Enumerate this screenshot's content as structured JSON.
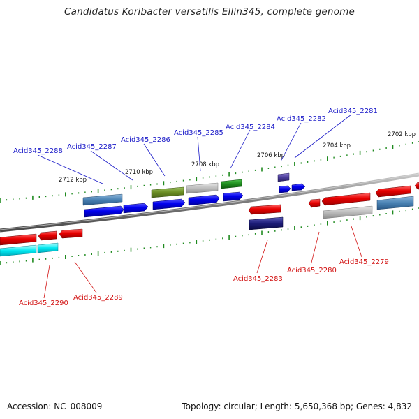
{
  "title": "Candidatus Koribacter versatilis Ellin345, complete genome",
  "footer": {
    "accession": "Accession: NC_008009",
    "topology": "Topology: circular; Length: 5,650,368 bp; Genes: 4,832"
  },
  "colors": {
    "backbone": "#8a8a8a",
    "tick": "#1f8a1f",
    "forward_label": "#1a1ac8",
    "reverse_label": "#d21212",
    "leader_forward": "#1a1ac8",
    "leader_reverse": "#d21212"
  },
  "kbp_labels": [
    "2712 kbp",
    "2710 kbp",
    "2708 kbp",
    "2706 kbp",
    "2704 kbp",
    "2702 kbp"
  ],
  "forward_labels": [
    "Acid345_2288",
    "Acid345_2287",
    "Acid345_2286",
    "Acid345_2285",
    "Acid345_2284",
    "Acid345_2282",
    "Acid345_2281"
  ],
  "reverse_labels": [
    "Acid345_2290",
    "Acid345_2289",
    "Acid345_2283",
    "Acid345_2280",
    "Acid345_2279"
  ]
}
